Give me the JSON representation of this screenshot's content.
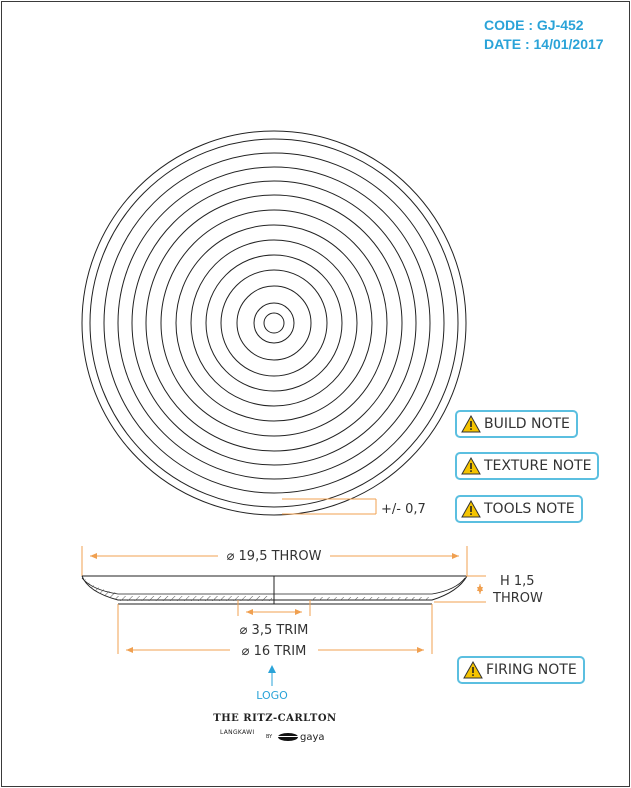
{
  "header": {
    "code": "CODE : GJ-452",
    "date": "DATE : 14/01/2017"
  },
  "notes": {
    "build": "BUILD NOTE",
    "texture": "TEXTURE NOTE",
    "tools": "TOOLS NOTE",
    "firing": "FIRING NOTE",
    "icon": "warning-triangle-icon"
  },
  "dimensions": {
    "tolerance": "+/- 0,7",
    "throw_diameter": "⌀ 19,5 THROW",
    "height": "H 1,5",
    "height_sub": "THROW",
    "trim_small": "⌀ 3,5 TRIM",
    "trim_large": "⌀ 16 TRIM"
  },
  "logo_label": "LOGO",
  "brand": {
    "name": "THE RITZ-CARLTON",
    "location": "LANGKAWI",
    "by": "BY",
    "maker": "gaya"
  },
  "colors": {
    "accent": "#2aa3d8",
    "dimension": "#f0a050",
    "note_border": "#5bbfe0",
    "line": "#222222"
  }
}
